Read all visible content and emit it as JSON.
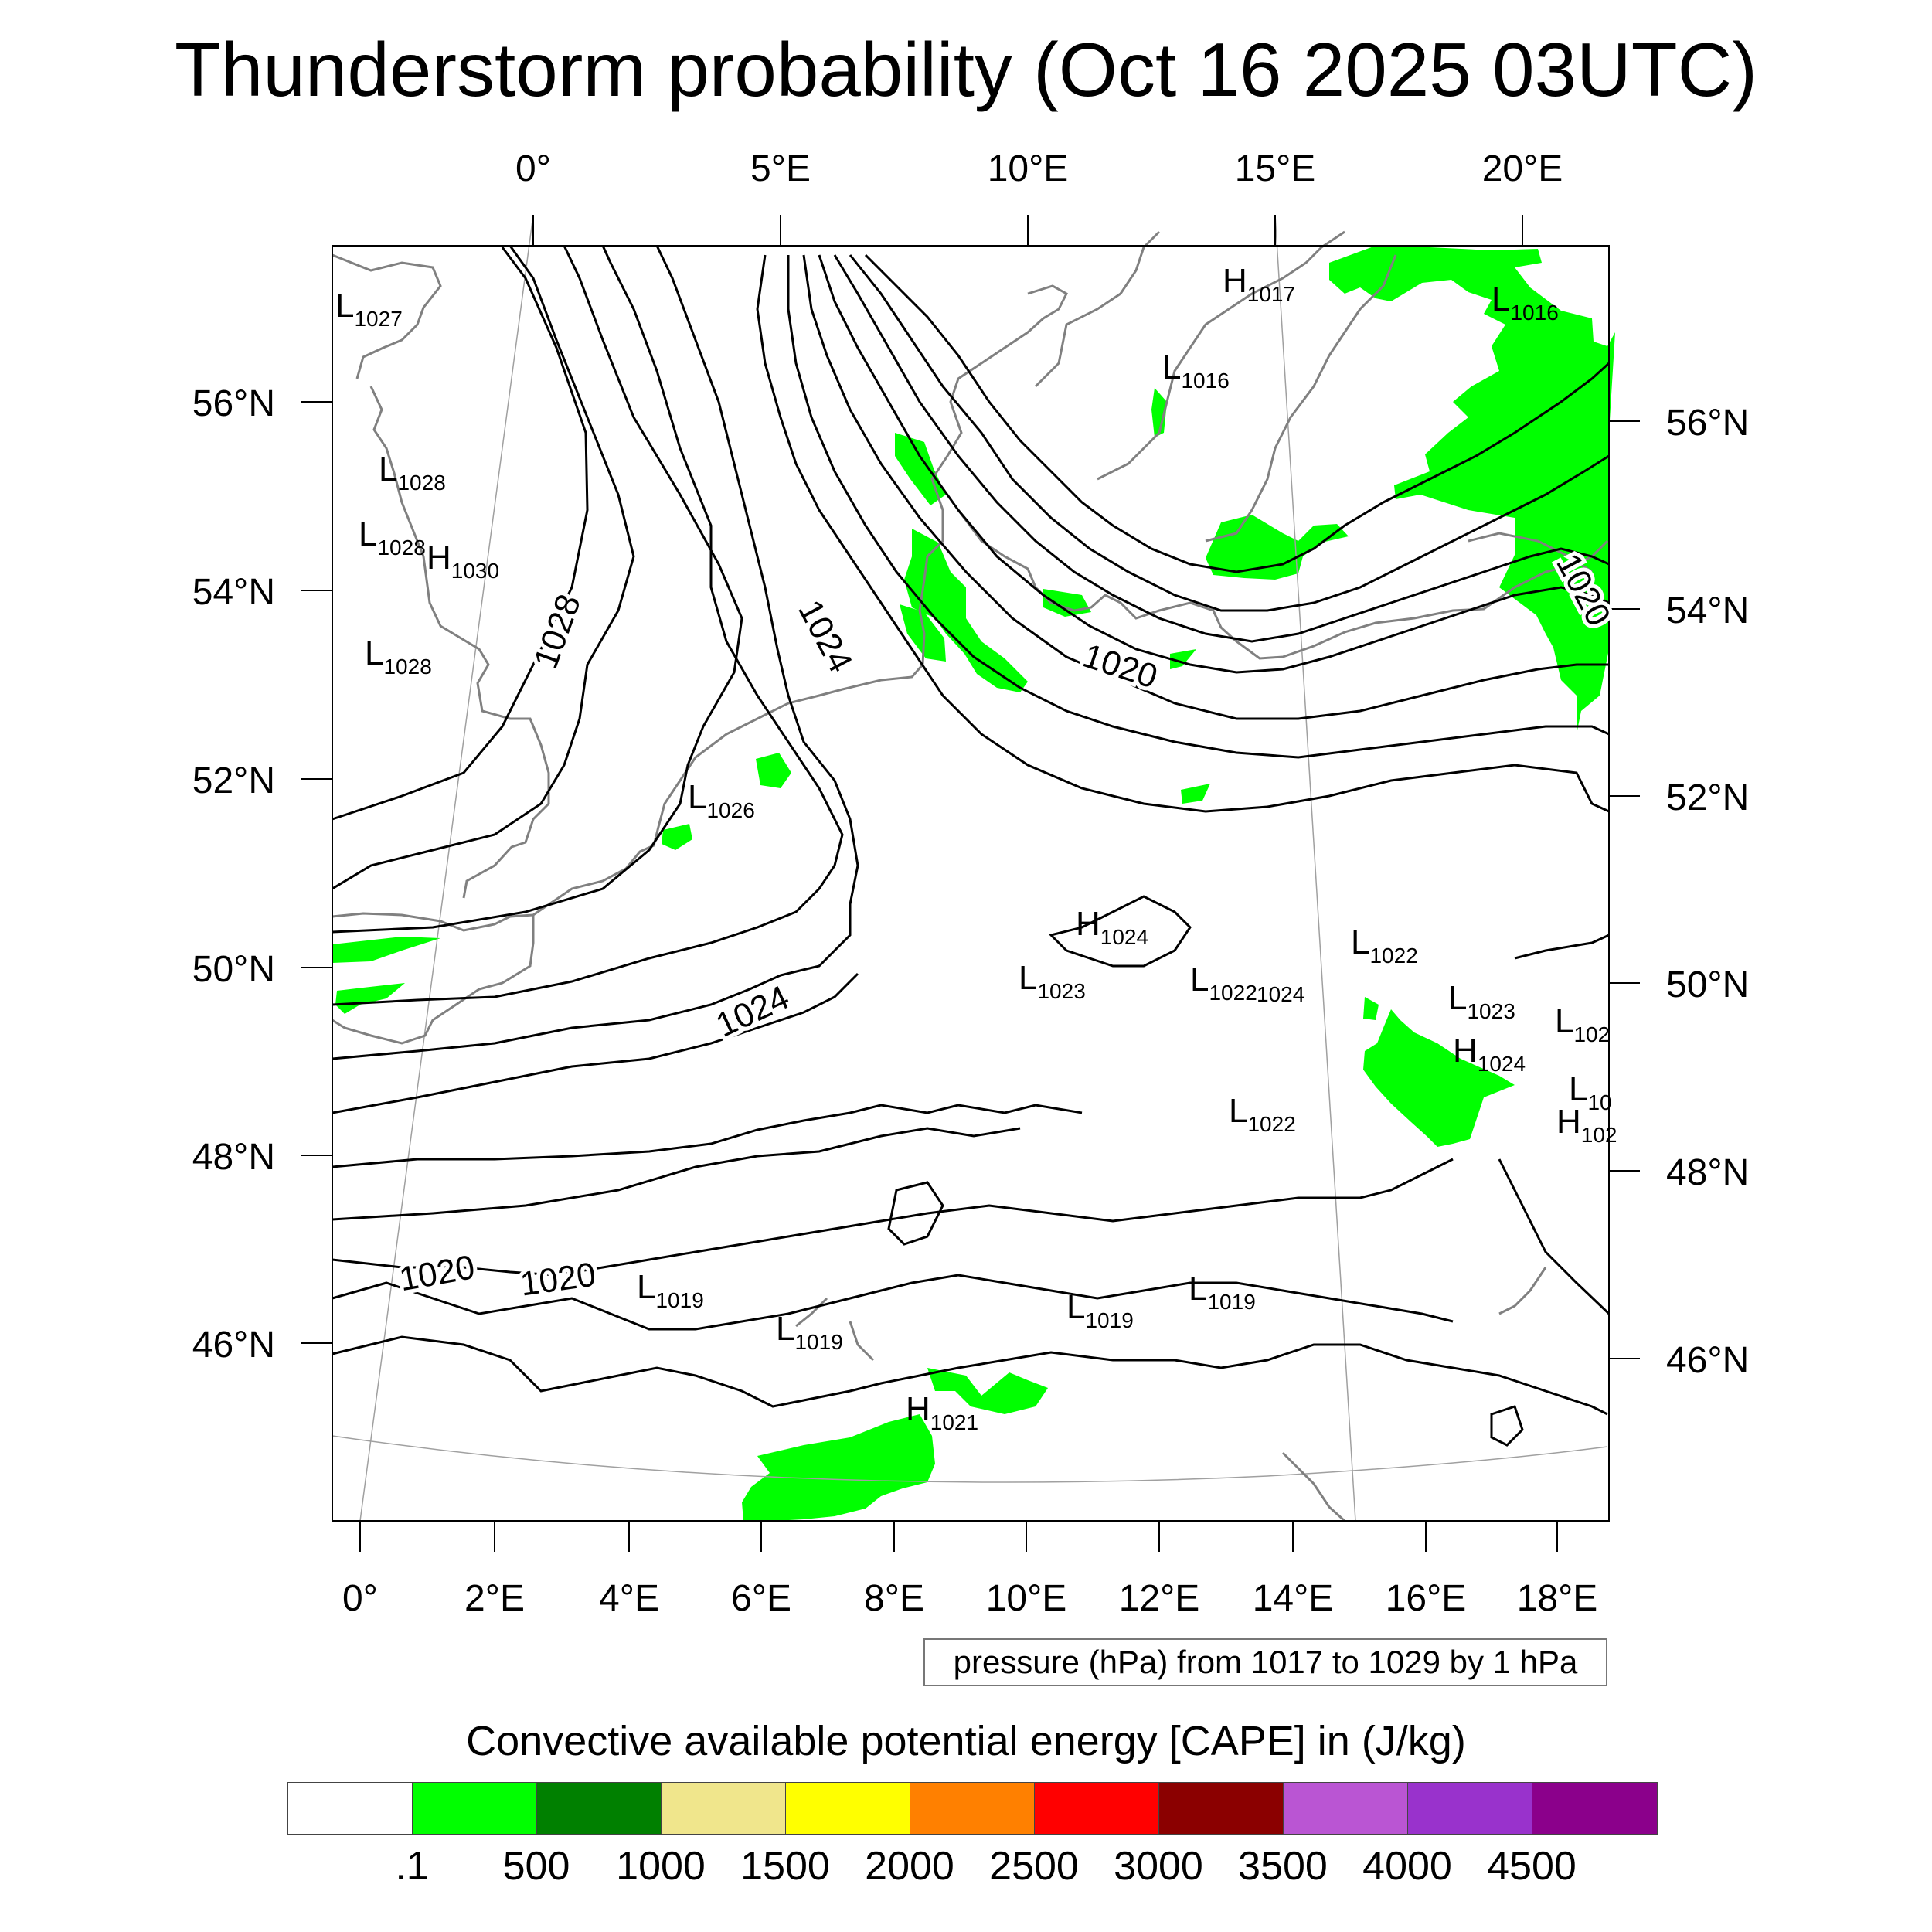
{
  "title": "Thunderstorm probability (Oct 16 2025 03UTC)",
  "map": {
    "top_axis_labels": [
      "0°",
      "5°E",
      "10°E",
      "15°E",
      "20°E"
    ],
    "bottom_axis_labels": [
      "0°",
      "2°E",
      "4°E",
      "6°E",
      "8°E",
      "10°E",
      "12°E",
      "14°E",
      "16°E",
      "18°E"
    ],
    "left_axis_labels": [
      "56°N",
      "54°N",
      "52°N",
      "50°N",
      "48°N",
      "46°N"
    ],
    "right_axis_labels": [
      "56°N",
      "54°N",
      "52°N",
      "50°N",
      "48°N",
      "46°N"
    ],
    "isobar_labels": [
      "1028",
      "1024",
      "1020",
      "1024",
      "1020",
      "1020",
      "1020"
    ],
    "pressure_centers": [
      {
        "type": "L",
        "value": "1027"
      },
      {
        "type": "L",
        "value": "1028"
      },
      {
        "type": "L",
        "value": "1028"
      },
      {
        "type": "H",
        "value": "1030"
      },
      {
        "type": "L",
        "value": "1028"
      },
      {
        "type": "L",
        "value": "1026"
      },
      {
        "type": "H",
        "value": "1017"
      },
      {
        "type": "L",
        "value": "1016"
      },
      {
        "type": "L",
        "value": "1016"
      },
      {
        "type": "H",
        "value": "1024"
      },
      {
        "type": "L",
        "value": "1023"
      },
      {
        "type": "L",
        "value": "1022"
      },
      {
        "type": "",
        "value": "1024"
      },
      {
        "type": "L",
        "value": "1022"
      },
      {
        "type": "L",
        "value": "1023"
      },
      {
        "type": "H",
        "value": "1024"
      },
      {
        "type": "L",
        "value": "102"
      },
      {
        "type": "L",
        "value": "10"
      },
      {
        "type": "H",
        "value": "102"
      },
      {
        "type": "L",
        "value": "1022"
      },
      {
        "type": "L",
        "value": "1019"
      },
      {
        "type": "L",
        "value": "1019"
      },
      {
        "type": "L",
        "value": "1019"
      },
      {
        "type": "L",
        "value": "1019"
      },
      {
        "type": "H",
        "value": "1021"
      }
    ]
  },
  "contour_info": "pressure (hPa) from 1017 to 1029 by 1 hPa",
  "colorbar": {
    "title": "Convective available potential energy [CAPE] in (J/kg)",
    "colors": [
      "#ffffff",
      "#00ff00",
      "#008000",
      "#f0e68c",
      "#ffff00",
      "#ff8000",
      "#ff0000",
      "#8b0000",
      "#ba55d3",
      "#9932cc",
      "#8b008b"
    ],
    "labels": [
      ".1",
      "500",
      "1000",
      "1500",
      "2000",
      "2500",
      "3000",
      "3500",
      "4000",
      "4500"
    ]
  },
  "colors": {
    "cape_fill": "#00ff00",
    "isobar": "#000000",
    "coastline": "#808080"
  }
}
